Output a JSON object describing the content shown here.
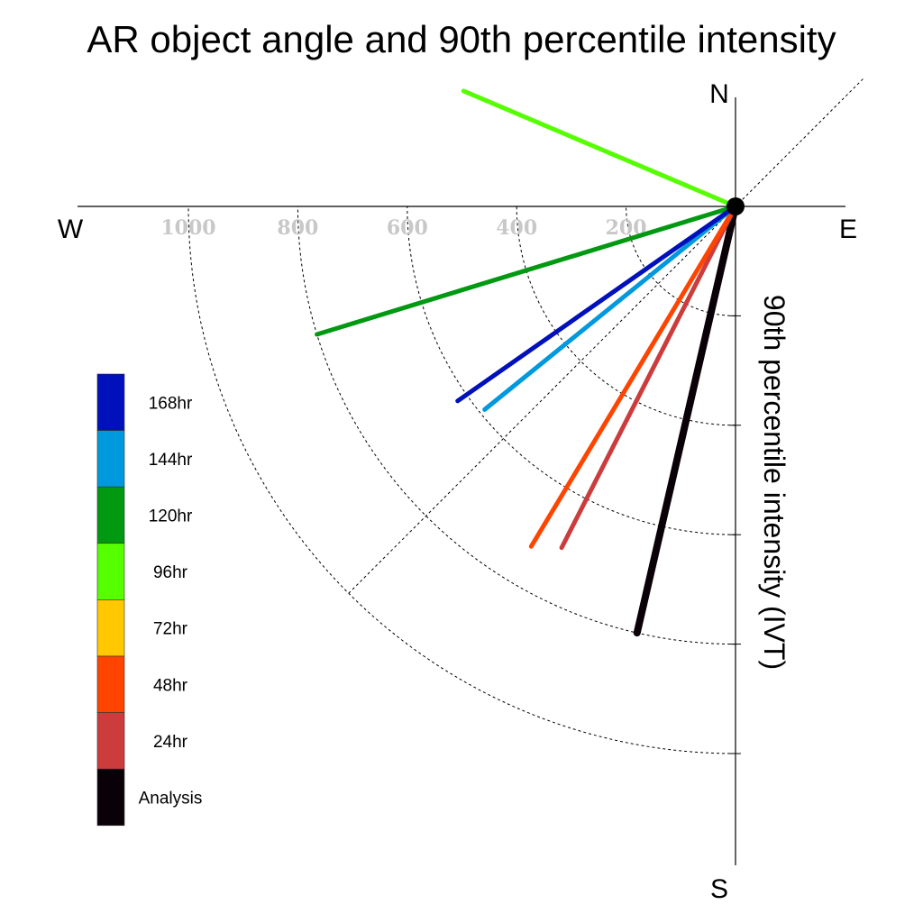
{
  "chart_data": {
    "type": "polar-vector",
    "title": "AR object angle and 90th percentile intensity",
    "radial_label": "90th percentile intensity (IVT)",
    "compass": {
      "north": "N",
      "south": "S",
      "east": "E",
      "west": "W"
    },
    "radial_ticks": [
      200,
      400,
      600,
      800,
      1000
    ],
    "radial_max": 1000,
    "series": [
      {
        "name": "Analysis",
        "angle_deg": 193,
        "intensity": 800,
        "color": "#0a0008",
        "width": 8
      },
      {
        "name": "24hr",
        "angle_deg": 207,
        "intensity": 700,
        "color": "#cc3c3c",
        "width": 5
      },
      {
        "name": "48hr",
        "angle_deg": 211,
        "intensity": 725,
        "color": "#ff4400",
        "width": 5
      },
      {
        "name": "72hr",
        "angle_deg": null,
        "intensity": null,
        "color": "#ffc800",
        "width": 5
      },
      {
        "name": "96hr",
        "angle_deg": 293,
        "intensity": 540,
        "color": "#55ff00",
        "width": 5
      },
      {
        "name": "120hr",
        "angle_deg": 253,
        "intensity": 800,
        "color": "#009911",
        "width": 5
      },
      {
        "name": "144hr",
        "angle_deg": 231,
        "intensity": 590,
        "color": "#0099dd",
        "width": 5
      },
      {
        "name": "168hr",
        "angle_deg": 235,
        "intensity": 620,
        "color": "#0011bb",
        "width": 5
      }
    ],
    "legend_order": [
      "168hr",
      "144hr",
      "120hr",
      "96hr",
      "72hr",
      "48hr",
      "24hr",
      "Analysis"
    ],
    "legend_position": "left"
  }
}
